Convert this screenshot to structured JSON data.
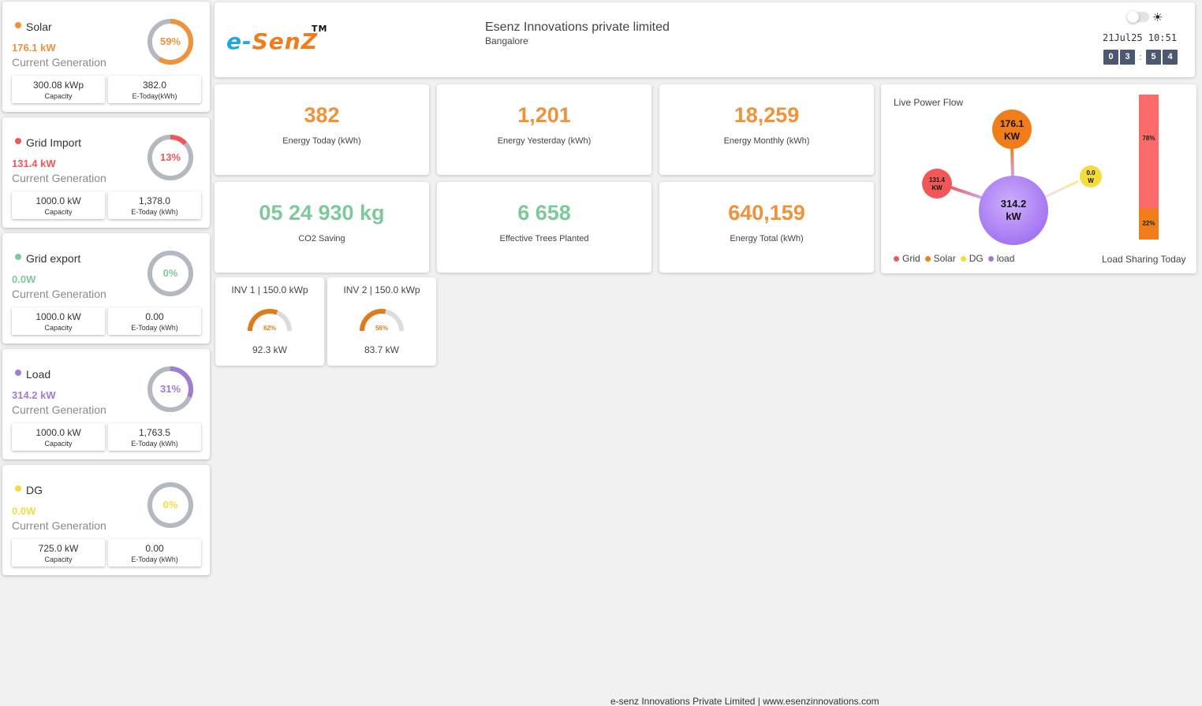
{
  "sidebar": [
    {
      "title": "Solar",
      "dot_color": "#f0923a",
      "power": "176.1 kW",
      "power_color": "#f0923a",
      "sub": "Current Generation",
      "percent": "59%",
      "percent_value": 0.59,
      "ring_color": "#f0923a",
      "capacity_value": "300.08 kWp",
      "capacity_label": "Capacity",
      "today_value": "382.0",
      "today_label": "E-Today(kWh)"
    },
    {
      "title": "Grid Import",
      "dot_color": "#f25757",
      "power": "131.4 kW",
      "power_color": "#f25757",
      "sub": "Current Generation",
      "percent": "13%",
      "percent_value": 0.13,
      "ring_color": "#f25757",
      "capacity_value": "1000.0 kW",
      "capacity_label": "Capacity",
      "today_value": "1,378.0",
      "today_label": "E-Today (kWh)"
    },
    {
      "title": "Grid export",
      "dot_color": "#7ec99a",
      "power": "0.0W",
      "power_color": "#7ec99a",
      "sub": "Current Generation",
      "percent": "0%",
      "percent_value": 0,
      "ring_color": "#7ec99a",
      "capacity_value": "1000.0 kW",
      "capacity_label": "Capacity",
      "today_value": "0.00",
      "today_label": "E-Today (kWh)"
    },
    {
      "title": "Load",
      "dot_color": "#a17dd1",
      "power": "314.2 kW",
      "power_color": "#a17dd1",
      "sub": "Current Generation",
      "percent": "31%",
      "percent_value": 0.31,
      "ring_color": "#a17dd1",
      "capacity_value": "1000.0 kW",
      "capacity_label": "Capacity",
      "today_value": "1,763.5",
      "today_label": "E-Today (kWh)"
    },
    {
      "title": "DG",
      "dot_color": "#f5dc3d",
      "power": "0.0W",
      "power_color": "#f5dc3d",
      "sub": "Current Generation",
      "percent": "0%",
      "percent_value": 0,
      "ring_color": "#f5dc3d",
      "capacity_value": "725.0 kW",
      "capacity_label": "Capacity",
      "today_value": "0.00",
      "today_label": "E-Today (kWh)"
    }
  ],
  "header": {
    "logo_e": "e-",
    "logo_rest": "SenZ",
    "logo_tm": "TM",
    "company": "Esenz Innovations private limited",
    "city": "Bangalore",
    "datetime": "21Jul25 10:51",
    "digits": [
      "0",
      "3",
      "5",
      "4"
    ],
    "colon": ":"
  },
  "stats": [
    {
      "value": "382",
      "label": "Energy Today (kWh)",
      "color": "#f0923a"
    },
    {
      "value": "1,201",
      "label": "Energy Yesterday (kWh)",
      "color": "#f0923a"
    },
    {
      "value": "18,259",
      "label": "Energy Monthly (kWh)",
      "color": "#f0923a"
    },
    {
      "value": "05 24 930 kg",
      "label": "CO2 Saving",
      "color": "#7ec99a"
    },
    {
      "value": "6 658",
      "label": "Effective Trees Planted",
      "color": "#7ec99a"
    },
    {
      "value": "640,159",
      "label": "Energy Total (kWh)",
      "color": "#f0923a"
    }
  ],
  "flow": {
    "title": "Live Power Flow",
    "solar_value": "176.1",
    "solar_unit": "KW",
    "grid_value": "131.4",
    "grid_unit": "KW",
    "dg_value": "0.0",
    "dg_unit": "W",
    "load_value": "314.2",
    "load_unit": "kW",
    "legend": [
      {
        "label": "Grid",
        "color": "#f25757"
      },
      {
        "label": "Solar",
        "color": "#f07d1a"
      },
      {
        "label": "DG",
        "color": "#f5dc3d"
      },
      {
        "label": "load",
        "color": "#a17dd1"
      }
    ],
    "share_label": "Load Sharing Today",
    "share_top": "78%",
    "share_top_value": 0.78,
    "share_top_color": "#fd6a6a",
    "share_bottom": "22%",
    "share_bottom_value": 0.22,
    "share_bottom_color": "#f07d1a"
  },
  "inverters": [
    {
      "title": "INV 1 | 150.0 kWp",
      "percent": "62%",
      "percent_value": 0.62,
      "power": "92.3 kW"
    },
    {
      "title": "INV 2 | 150.0 kWp",
      "percent": "56%",
      "percent_value": 0.56,
      "power": "83.7 kW"
    }
  ],
  "footer": "e-senz Innovations Private Limited | www.esenzinnovations.com"
}
